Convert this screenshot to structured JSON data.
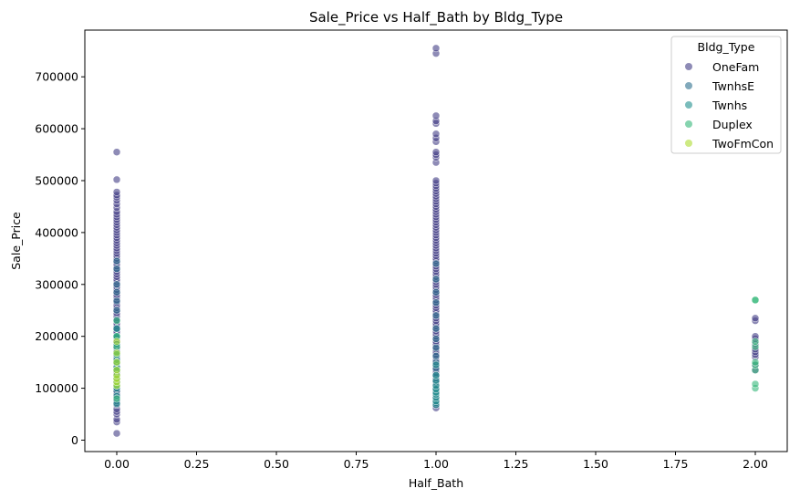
{
  "chart_data": {
    "type": "scatter",
    "title": "Sale_Price vs Half_Bath by Bldg_Type",
    "xlabel": "Half_Bath",
    "ylabel": "Sale_Price",
    "xlim": [
      -0.1,
      2.1
    ],
    "ylim": [
      -22000,
      790000
    ],
    "x_ticks": [
      0.0,
      0.25,
      0.5,
      0.75,
      1.0,
      1.25,
      1.5,
      1.75,
      2.0
    ],
    "x_tick_labels": [
      "0.00",
      "0.25",
      "0.50",
      "0.75",
      "1.00",
      "1.25",
      "1.50",
      "1.75",
      "2.00"
    ],
    "y_ticks": [
      0,
      100000,
      200000,
      300000,
      400000,
      500000,
      600000,
      700000
    ],
    "y_tick_labels": [
      "0",
      "100000",
      "200000",
      "300000",
      "400000",
      "500000",
      "600000",
      "700000"
    ],
    "grid": false,
    "legend": {
      "title": "Bldg_Type",
      "placement": "top-right"
    },
    "series": [
      {
        "name": "OneFam",
        "color": "#433e85",
        "points": [
          [
            0,
            13000
          ],
          [
            0,
            35000
          ],
          [
            0,
            40000
          ],
          [
            0,
            50000
          ],
          [
            0,
            55000
          ],
          [
            0,
            60000
          ],
          [
            0,
            68000
          ],
          [
            0,
            72000
          ],
          [
            0,
            80000
          ],
          [
            0,
            85000
          ],
          [
            0,
            90000
          ],
          [
            0,
            95000
          ],
          [
            0,
            100000
          ],
          [
            0,
            105000
          ],
          [
            0,
            110000
          ],
          [
            0,
            115000
          ],
          [
            0,
            120000
          ],
          [
            0,
            125000
          ],
          [
            0,
            130000
          ],
          [
            0,
            135000
          ],
          [
            0,
            140000
          ],
          [
            0,
            145000
          ],
          [
            0,
            150000
          ],
          [
            0,
            155000
          ],
          [
            0,
            160000
          ],
          [
            0,
            165000
          ],
          [
            0,
            170000
          ],
          [
            0,
            175000
          ],
          [
            0,
            180000
          ],
          [
            0,
            185000
          ],
          [
            0,
            190000
          ],
          [
            0,
            195000
          ],
          [
            0,
            200000
          ],
          [
            0,
            205000
          ],
          [
            0,
            210000
          ],
          [
            0,
            215000
          ],
          [
            0,
            220000
          ],
          [
            0,
            225000
          ],
          [
            0,
            230000
          ],
          [
            0,
            235000
          ],
          [
            0,
            240000
          ],
          [
            0,
            245000
          ],
          [
            0,
            250000
          ],
          [
            0,
            255000
          ],
          [
            0,
            260000
          ],
          [
            0,
            265000
          ],
          [
            0,
            270000
          ],
          [
            0,
            275000
          ],
          [
            0,
            280000
          ],
          [
            0,
            285000
          ],
          [
            0,
            290000
          ],
          [
            0,
            295000
          ],
          [
            0,
            300000
          ],
          [
            0,
            305000
          ],
          [
            0,
            310000
          ],
          [
            0,
            315000
          ],
          [
            0,
            320000
          ],
          [
            0,
            325000
          ],
          [
            0,
            330000
          ],
          [
            0,
            335000
          ],
          [
            0,
            340000
          ],
          [
            0,
            345000
          ],
          [
            0,
            350000
          ],
          [
            0,
            355000
          ],
          [
            0,
            360000
          ],
          [
            0,
            365000
          ],
          [
            0,
            370000
          ],
          [
            0,
            375000
          ],
          [
            0,
            380000
          ],
          [
            0,
            385000
          ],
          [
            0,
            390000
          ],
          [
            0,
            395000
          ],
          [
            0,
            400000
          ],
          [
            0,
            405000
          ],
          [
            0,
            410000
          ],
          [
            0,
            415000
          ],
          [
            0,
            420000
          ],
          [
            0,
            425000
          ],
          [
            0,
            430000
          ],
          [
            0,
            435000
          ],
          [
            0,
            440000
          ],
          [
            0,
            448000
          ],
          [
            0,
            455000
          ],
          [
            0,
            462000
          ],
          [
            0,
            468000
          ],
          [
            0,
            472000
          ],
          [
            0,
            478000
          ],
          [
            0,
            502000
          ],
          [
            0,
            555000
          ],
          [
            1,
            62000
          ],
          [
            1,
            68000
          ],
          [
            1,
            75000
          ],
          [
            1,
            85000
          ],
          [
            1,
            95000
          ],
          [
            1,
            100000
          ],
          [
            1,
            105000
          ],
          [
            1,
            110000
          ],
          [
            1,
            115000
          ],
          [
            1,
            120000
          ],
          [
            1,
            125000
          ],
          [
            1,
            130000
          ],
          [
            1,
            135000
          ],
          [
            1,
            140000
          ],
          [
            1,
            145000
          ],
          [
            1,
            150000
          ],
          [
            1,
            155000
          ],
          [
            1,
            160000
          ],
          [
            1,
            165000
          ],
          [
            1,
            170000
          ],
          [
            1,
            175000
          ],
          [
            1,
            180000
          ],
          [
            1,
            185000
          ],
          [
            1,
            190000
          ],
          [
            1,
            195000
          ],
          [
            1,
            200000
          ],
          [
            1,
            205000
          ],
          [
            1,
            210000
          ],
          [
            1,
            215000
          ],
          [
            1,
            220000
          ],
          [
            1,
            225000
          ],
          [
            1,
            230000
          ],
          [
            1,
            235000
          ],
          [
            1,
            240000
          ],
          [
            1,
            245000
          ],
          [
            1,
            250000
          ],
          [
            1,
            255000
          ],
          [
            1,
            260000
          ],
          [
            1,
            265000
          ],
          [
            1,
            270000
          ],
          [
            1,
            275000
          ],
          [
            1,
            280000
          ],
          [
            1,
            285000
          ],
          [
            1,
            290000
          ],
          [
            1,
            295000
          ],
          [
            1,
            300000
          ],
          [
            1,
            305000
          ],
          [
            1,
            310000
          ],
          [
            1,
            315000
          ],
          [
            1,
            320000
          ],
          [
            1,
            325000
          ],
          [
            1,
            330000
          ],
          [
            1,
            335000
          ],
          [
            1,
            340000
          ],
          [
            1,
            345000
          ],
          [
            1,
            350000
          ],
          [
            1,
            355000
          ],
          [
            1,
            360000
          ],
          [
            1,
            365000
          ],
          [
            1,
            370000
          ],
          [
            1,
            375000
          ],
          [
            1,
            380000
          ],
          [
            1,
            385000
          ],
          [
            1,
            390000
          ],
          [
            1,
            395000
          ],
          [
            1,
            400000
          ],
          [
            1,
            405000
          ],
          [
            1,
            410000
          ],
          [
            1,
            415000
          ],
          [
            1,
            420000
          ],
          [
            1,
            425000
          ],
          [
            1,
            430000
          ],
          [
            1,
            435000
          ],
          [
            1,
            440000
          ],
          [
            1,
            445000
          ],
          [
            1,
            450000
          ],
          [
            1,
            455000
          ],
          [
            1,
            460000
          ],
          [
            1,
            465000
          ],
          [
            1,
            470000
          ],
          [
            1,
            475000
          ],
          [
            1,
            480000
          ],
          [
            1,
            485000
          ],
          [
            1,
            490000
          ],
          [
            1,
            495000
          ],
          [
            1,
            500000
          ],
          [
            1,
            535000
          ],
          [
            1,
            545000
          ],
          [
            1,
            550000
          ],
          [
            1,
            555000
          ],
          [
            1,
            575000
          ],
          [
            1,
            582000
          ],
          [
            1,
            590000
          ],
          [
            1,
            610000
          ],
          [
            1,
            615000
          ],
          [
            1,
            625000
          ],
          [
            1,
            745000
          ],
          [
            1,
            755000
          ],
          [
            2,
            135000
          ],
          [
            2,
            145000
          ],
          [
            2,
            160000
          ],
          [
            2,
            165000
          ],
          [
            2,
            170000
          ],
          [
            2,
            175000
          ],
          [
            2,
            185000
          ],
          [
            2,
            195000
          ],
          [
            2,
            200000
          ],
          [
            2,
            230000
          ],
          [
            2,
            235000
          ]
        ]
      },
      {
        "name": "TwnhsE",
        "color": "#2d708e",
        "points": [
          [
            0,
            75000
          ],
          [
            0,
            95000
          ],
          [
            0,
            120000
          ],
          [
            0,
            135000
          ],
          [
            0,
            148000
          ],
          [
            0,
            165000
          ],
          [
            0,
            180000
          ],
          [
            0,
            198000
          ],
          [
            0,
            215000
          ],
          [
            0,
            232000
          ],
          [
            0,
            250000
          ],
          [
            0,
            268000
          ],
          [
            0,
            285000
          ],
          [
            0,
            300000
          ],
          [
            0,
            330000
          ],
          [
            0,
            345000
          ],
          [
            1,
            72000
          ],
          [
            1,
            80000
          ],
          [
            1,
            90000
          ],
          [
            1,
            100000
          ],
          [
            1,
            112000
          ],
          [
            1,
            125000
          ],
          [
            1,
            138000
          ],
          [
            1,
            150000
          ],
          [
            1,
            162000
          ],
          [
            1,
            178000
          ],
          [
            1,
            195000
          ],
          [
            1,
            215000
          ],
          [
            1,
            240000
          ],
          [
            1,
            265000
          ],
          [
            1,
            285000
          ],
          [
            1,
            310000
          ],
          [
            1,
            340000
          ]
        ]
      },
      {
        "name": "Twnhs",
        "color": "#21908d",
        "points": [
          [
            0,
            70000
          ],
          [
            0,
            85000
          ],
          [
            0,
            100000
          ],
          [
            0,
            112000
          ],
          [
            0,
            125000
          ],
          [
            0,
            140000
          ],
          [
            0,
            155000
          ],
          [
            0,
            170000
          ],
          [
            0,
            185000
          ],
          [
            0,
            200000
          ],
          [
            0,
            215000
          ],
          [
            1,
            68000
          ],
          [
            1,
            75000
          ],
          [
            1,
            82000
          ],
          [
            1,
            88000
          ],
          [
            1,
            92000
          ],
          [
            1,
            98000
          ],
          [
            1,
            105000
          ],
          [
            1,
            115000
          ],
          [
            1,
            125000
          ],
          [
            1,
            145000
          ]
        ]
      },
      {
        "name": "Duplex",
        "color": "#35b779",
        "points": [
          [
            0,
            80000
          ],
          [
            0,
            105000
          ],
          [
            0,
            120000
          ],
          [
            0,
            135000
          ],
          [
            0,
            150000
          ],
          [
            0,
            165000
          ],
          [
            0,
            180000
          ],
          [
            0,
            200000
          ],
          [
            0,
            230000
          ],
          [
            2,
            100000
          ],
          [
            2,
            108000
          ],
          [
            2,
            135000
          ],
          [
            2,
            145000
          ],
          [
            2,
            150000
          ],
          [
            2,
            180000
          ],
          [
            2,
            190000
          ],
          [
            2,
            270000
          ],
          [
            2,
            270000
          ]
        ]
      },
      {
        "name": "TwoFmCon",
        "color": "#addc30",
        "points": [
          [
            0,
            105000
          ],
          [
            0,
            112000
          ],
          [
            0,
            118000
          ],
          [
            0,
            125000
          ],
          [
            0,
            135000
          ],
          [
            0,
            150000
          ],
          [
            0,
            168000
          ],
          [
            0,
            190000
          ]
        ]
      }
    ]
  }
}
